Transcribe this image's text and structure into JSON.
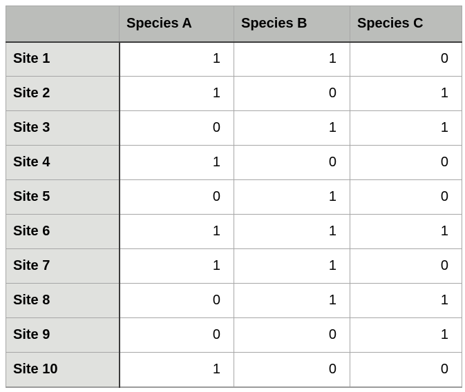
{
  "table": {
    "corner_label": "",
    "columns": [
      "Species A",
      "Species B",
      "Species C"
    ],
    "rows": [
      {
        "label": "Site 1",
        "values": [
          "1",
          "1",
          "0"
        ]
      },
      {
        "label": "Site 2",
        "values": [
          "1",
          "0",
          "1"
        ]
      },
      {
        "label": "Site 3",
        "values": [
          "0",
          "1",
          "1"
        ]
      },
      {
        "label": "Site 4",
        "values": [
          "1",
          "0",
          "0"
        ]
      },
      {
        "label": "Site 5",
        "values": [
          "0",
          "1",
          "0"
        ]
      },
      {
        "label": "Site 6",
        "values": [
          "1",
          "1",
          "1"
        ]
      },
      {
        "label": "Site 7",
        "values": [
          "1",
          "1",
          "0"
        ]
      },
      {
        "label": "Site 8",
        "values": [
          "0",
          "1",
          "1"
        ]
      },
      {
        "label": "Site 9",
        "values": [
          "0",
          "0",
          "1"
        ]
      },
      {
        "label": "Site 10",
        "values": [
          "1",
          "0",
          "0"
        ]
      }
    ]
  },
  "chart_data": {
    "type": "table",
    "title": "",
    "columns": [
      "Species A",
      "Species B",
      "Species C"
    ],
    "row_labels": [
      "Site 1",
      "Site 2",
      "Site 3",
      "Site 4",
      "Site 5",
      "Site 6",
      "Site 7",
      "Site 8",
      "Site 9",
      "Site 10"
    ],
    "values": [
      [
        1,
        1,
        0
      ],
      [
        1,
        0,
        1
      ],
      [
        0,
        1,
        1
      ],
      [
        1,
        0,
        0
      ],
      [
        0,
        1,
        0
      ],
      [
        1,
        1,
        1
      ],
      [
        1,
        1,
        0
      ],
      [
        0,
        1,
        1
      ],
      [
        0,
        0,
        1
      ],
      [
        1,
        0,
        0
      ]
    ]
  },
  "colors": {
    "header_background": "#bbbdba",
    "row_label_background": "#e0e1de",
    "cell_background": "#ffffff",
    "grid_line": "#a6a6a6",
    "header_separator": "#3b3b3b",
    "text": "#000000"
  }
}
